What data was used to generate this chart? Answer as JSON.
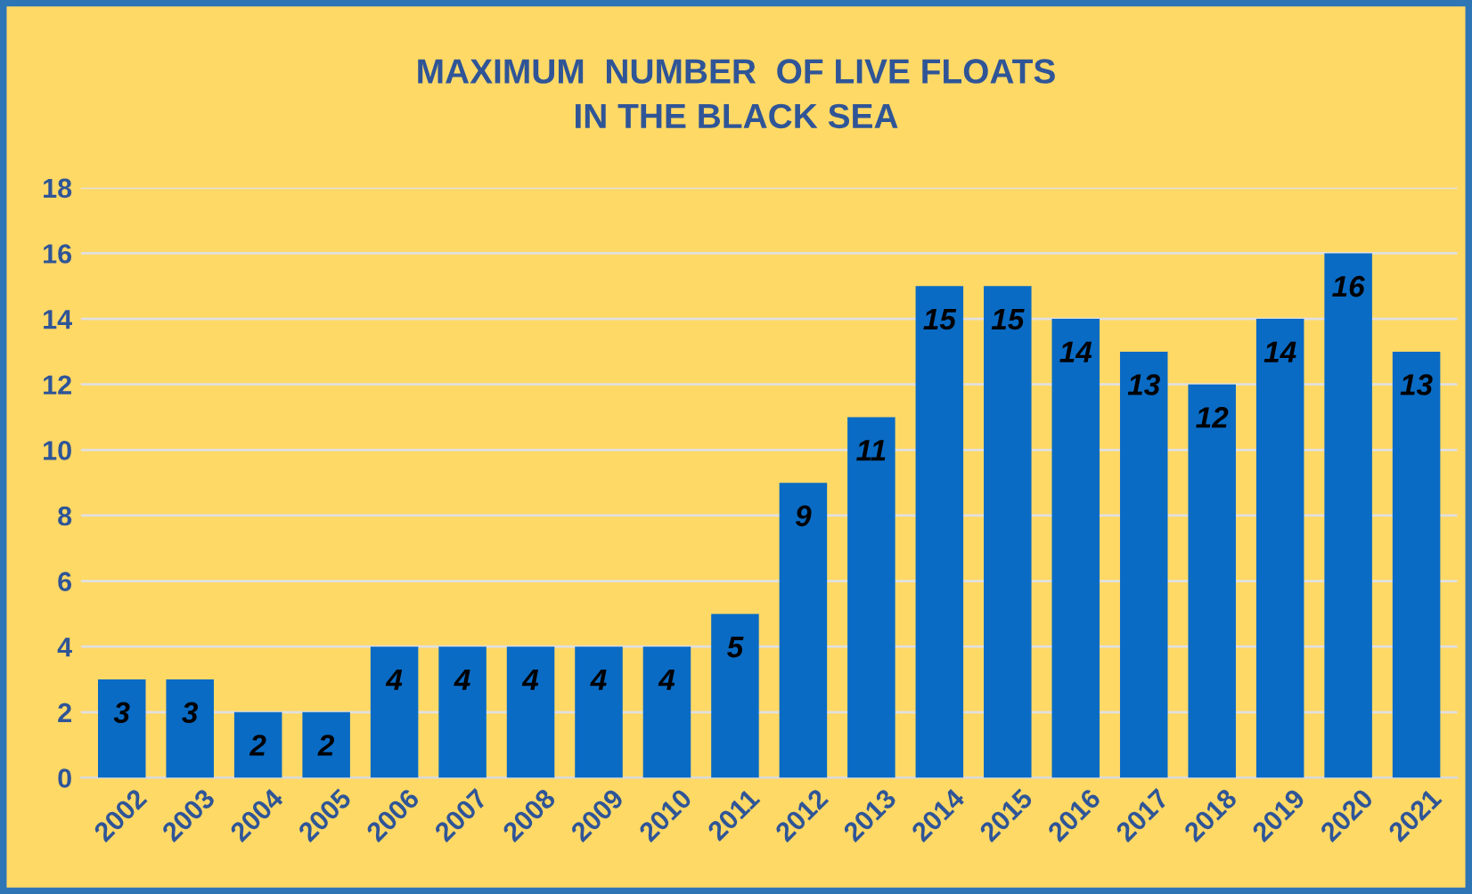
{
  "chart_data": {
    "type": "bar",
    "title": "MAXIMUM  NUMBER  OF LIVE FLOATS\nIN THE BLACK SEA",
    "categories": [
      "2002",
      "2003",
      "2004",
      "2005",
      "2006",
      "2007",
      "2008",
      "2009",
      "2010",
      "2011",
      "2012",
      "2013",
      "2014",
      "2015",
      "2016",
      "2017",
      "2018",
      "2019",
      "2020",
      "2021"
    ],
    "values": [
      3,
      3,
      2,
      2,
      4,
      4,
      4,
      4,
      4,
      5,
      9,
      11,
      15,
      15,
      14,
      13,
      12,
      14,
      16,
      13
    ],
    "color": "#0a6bc4",
    "ylim": [
      0,
      18
    ],
    "yticks": [
      0,
      2,
      4,
      6,
      8,
      10,
      12,
      14,
      16,
      18
    ],
    "grid": "y",
    "data_labels": true
  }
}
